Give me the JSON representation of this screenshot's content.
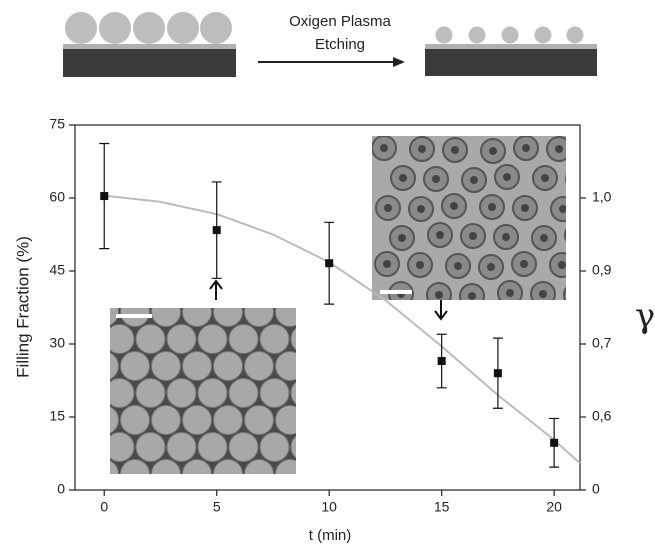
{
  "schematic": {
    "text": [
      "Oxigen Plasma",
      "Etching"
    ]
  },
  "chart_data": {
    "type": "scatter",
    "xlabel": "t (min)",
    "ylabel": "Filling Fraction (%)",
    "y2label": "γ",
    "xlim": [
      -1.3,
      21.15
    ],
    "xticks": [
      0,
      5,
      10,
      15,
      20
    ],
    "ylim": [
      0,
      75
    ],
    "yticks": [
      0,
      15,
      30,
      45,
      60,
      75
    ],
    "y2ticks": [
      0,
      {
        "value": 0.6,
        "label": "0,6"
      },
      {
        "value": 0.7,
        "label": "0,7"
      },
      {
        "value": 0.9,
        "label": "0,9"
      },
      {
        "value": 1.0,
        "label": "1,0"
      }
    ],
    "series": [
      {
        "color": "#111111",
        "x": [
          0,
          5,
          10,
          15,
          17.5,
          20
        ],
        "values": [
          60.4,
          53.4,
          46.6,
          26.5,
          24,
          9.7
        ],
        "errors": [
          10.8,
          9.9,
          8.4,
          5.5,
          7.2,
          5
        ]
      },
      {
        "color": "#bbbbbb",
        "x": [
          0,
          2.5,
          5,
          7.5,
          10,
          12.5,
          15,
          17.5,
          20,
          21.15
        ],
        "values": [
          60.5,
          59.2,
          56.7,
          52.5,
          46.8,
          39,
          29.5,
          19.5,
          10.3,
          5.5
        ]
      }
    ]
  }
}
